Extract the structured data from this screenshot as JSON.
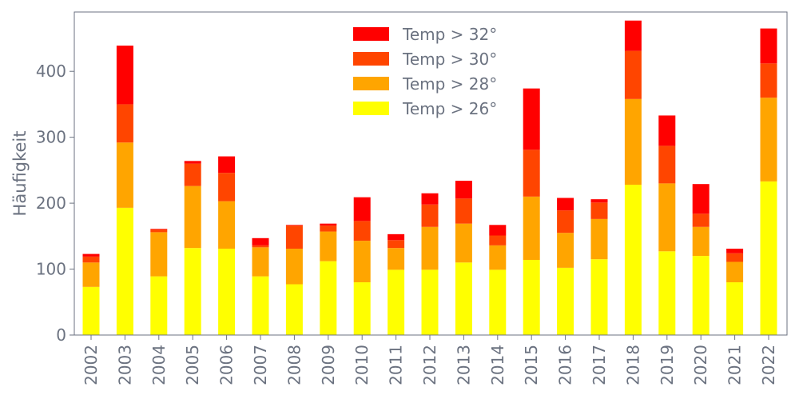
{
  "chart_data": {
    "type": "bar",
    "stacked": true,
    "title": "",
    "xlabel": "",
    "ylabel": "Häufigkeit",
    "ylim": [
      0,
      490
    ],
    "yticks": [
      0,
      100,
      200,
      300,
      400
    ],
    "grid": false,
    "legend_position": "top-center",
    "categories": [
      "2002",
      "2003",
      "2004",
      "2005",
      "2006",
      "2007",
      "2008",
      "2009",
      "2010",
      "2011",
      "2012",
      "2013",
      "2014",
      "2015",
      "2016",
      "2017",
      "2018",
      "2019",
      "2020",
      "2021",
      "2022"
    ],
    "series": [
      {
        "name": "Temp > 26°",
        "color": "#ffff00",
        "values": [
          73,
          193,
          89,
          132,
          131,
          89,
          77,
          112,
          80,
          99,
          99,
          110,
          99,
          114,
          102,
          115,
          228,
          127,
          120,
          80,
          233
        ]
      },
      {
        "name": "Temp > 28°",
        "color": "#ffa500",
        "values": [
          37,
          99,
          67,
          94,
          72,
          44,
          54,
          45,
          63,
          33,
          65,
          59,
          37,
          96,
          53,
          61,
          130,
          103,
          44,
          31,
          127
        ]
      },
      {
        "name": "Temp > 30°",
        "color": "#ff4500",
        "values": [
          9,
          58,
          4,
          34,
          43,
          3,
          35,
          9,
          30,
          12,
          34,
          38,
          15,
          71,
          34,
          25,
          73,
          57,
          20,
          13,
          52
        ]
      },
      {
        "name": "Temp > 32°",
        "color": "#ff0000",
        "values": [
          4,
          89,
          1,
          4,
          25,
          11,
          1,
          3,
          36,
          9,
          17,
          27,
          16,
          93,
          19,
          5,
          46,
          46,
          45,
          7,
          53
        ]
      }
    ]
  }
}
